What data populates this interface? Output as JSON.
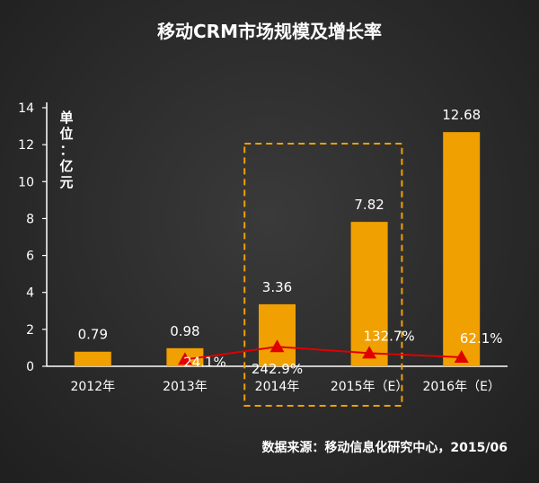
{
  "chart_data": {
    "type": "bar",
    "title": "移动CRM市场规模及增长率",
    "unit_label": "单位：亿元",
    "categories": [
      "2012年",
      "2013年",
      "2014年",
      "2015年（E）",
      "2016年（E）"
    ],
    "series": [
      {
        "name": "市场规模",
        "type": "bar",
        "values": [
          0.79,
          0.98,
          3.36,
          7.82,
          12.68
        ],
        "labels": [
          "0.79",
          "0.98",
          "3.36",
          "7.82",
          "12.68"
        ],
        "color": "#f0a000"
      },
      {
        "name": "增长率",
        "type": "line",
        "values": [
          null,
          24.1,
          242.9,
          132.7,
          62.1
        ],
        "labels": [
          "",
          "24.1%",
          "242.9%",
          "132.7%",
          "62.1%"
        ],
        "color": "#e00000"
      }
    ],
    "yticks": [
      "0",
      "2",
      "4",
      "6",
      "8",
      "10",
      "12",
      "14"
    ],
    "ylim": [
      0,
      14
    ],
    "highlight": {
      "from_category": "2014年",
      "to_category": "2015年（E）",
      "style": "dashed",
      "color": "#f0a000"
    },
    "source": "数据来源：移动信息化研究中心，2015/06"
  }
}
